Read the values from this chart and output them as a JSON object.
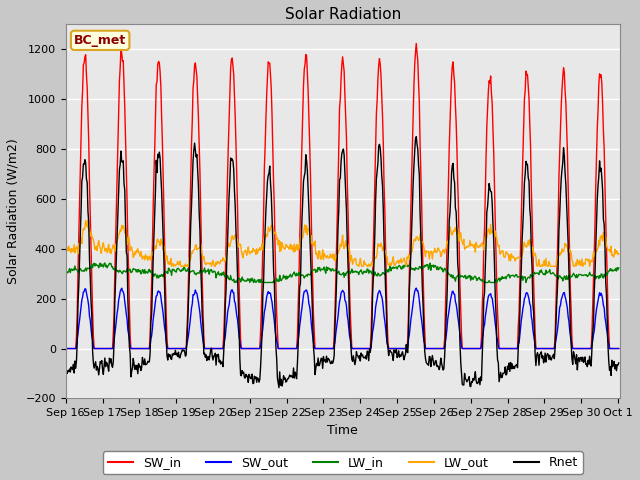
{
  "title": "Solar Radiation",
  "xlabel": "Time",
  "ylabel": "Solar Radiation (W/m2)",
  "ylim": [
    -200,
    1300
  ],
  "yticks": [
    -200,
    0,
    200,
    400,
    600,
    800,
    1000,
    1200
  ],
  "colors": {
    "SW_in": "red",
    "SW_out": "blue",
    "LW_in": "green",
    "LW_out": "orange",
    "Rnet": "black"
  },
  "site_label": "BC_met",
  "xtick_labels": [
    "Sep 16",
    "Sep 17",
    "Sep 18",
    "Sep 19",
    "Sep 20",
    "Sep 21",
    "Sep 22",
    "Sep 23",
    "Sep 24",
    "Sep 25",
    "Sep 26",
    "Sep 27",
    "Sep 28",
    "Sep 29",
    "Sep 30",
    "Oct 1"
  ],
  "linewidth": 1.0,
  "fig_bg": "#c8c8c8",
  "ax_bg": "#e8e8e8"
}
